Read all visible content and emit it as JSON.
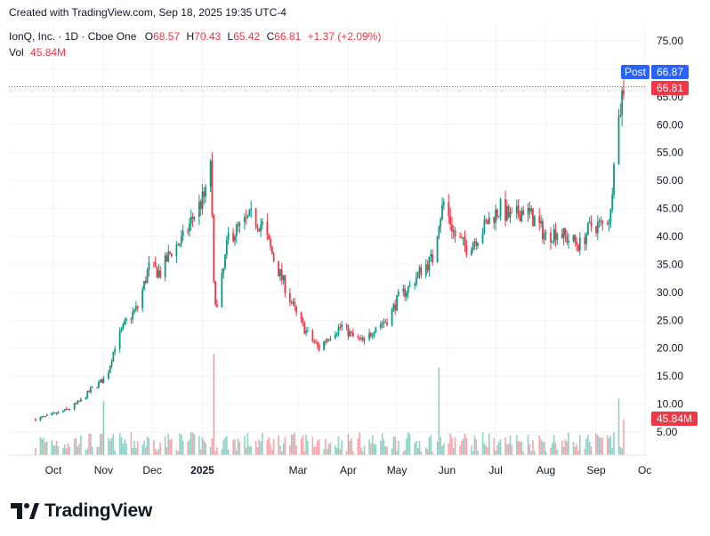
{
  "credit": "Created with TradingView.com, Sep 18, 2025 19:35 UTC-4",
  "brand": "TradingView",
  "legend": {
    "symbol": "IonQ, Inc. · 1D · Cboe One",
    "o_label": "O",
    "o": "68.57",
    "h_label": "H",
    "h": "70.43",
    "l_label": "L",
    "l": "65.42",
    "c_label": "C",
    "c": "66.81",
    "change": "+1.37 (+2.09%)",
    "vol_label": "Vol",
    "vol": "45.84M"
  },
  "badges": {
    "post_label": "Post",
    "post_price": "66.87",
    "last_price": "66.81",
    "volume": "45.84M"
  },
  "colors": {
    "up": "#089981",
    "down": "#f23645",
    "post": "#2962ff",
    "grid": "#f0f3fa"
  },
  "chart_data": {
    "type": "candlestick",
    "y_axis_ticks": [
      "5.00",
      "10.00",
      "15.00",
      "20.00",
      "25.00",
      "30.00",
      "35.00",
      "40.00",
      "45.00",
      "50.00",
      "55.00",
      "60.00",
      "65.00",
      "70.00",
      "75.00"
    ],
    "x_axis_ticks": [
      "Oct",
      "Nov",
      "Dec",
      "2025",
      "Mar",
      "Apr",
      "May",
      "Jun",
      "Jul",
      "Aug",
      "Sep",
      "Oc"
    ],
    "x_axis_dates": [
      "2024-10-01",
      "2024-11-01",
      "2024-12-01",
      "2025-01-01",
      "2025-03-01",
      "2025-04-01",
      "2025-05-01",
      "2025-06-01",
      "2025-07-01",
      "2025-08-01",
      "2025-09-01",
      "2025-10-01"
    ],
    "ylim": [
      0,
      78
    ],
    "closes": [
      [
        "2024-09-20",
        7.3
      ],
      [
        "2024-09-27",
        7.8
      ],
      [
        "2024-10-04",
        8.4
      ],
      [
        "2024-10-11",
        9.2
      ],
      [
        "2024-10-18",
        10.6
      ],
      [
        "2024-10-25",
        12.8
      ],
      [
        "2024-11-01",
        14.4
      ],
      [
        "2024-11-04",
        16.0
      ],
      [
        "2024-11-08",
        20.5
      ],
      [
        "2024-11-15",
        24.8
      ],
      [
        "2024-11-22",
        27.3
      ],
      [
        "2024-11-29",
        34.5
      ],
      [
        "2024-12-06",
        33.5
      ],
      [
        "2024-12-13",
        37.5
      ],
      [
        "2024-12-20",
        39.5
      ],
      [
        "2024-12-27",
        44.0
      ],
      [
        "2025-01-03",
        47.5
      ],
      [
        "2025-01-06",
        54.0
      ],
      [
        "2025-01-08",
        31.0
      ],
      [
        "2025-01-10",
        27.0
      ],
      [
        "2025-01-14",
        34.0
      ],
      [
        "2025-01-17",
        40.0
      ],
      [
        "2025-01-24",
        41.5
      ],
      [
        "2025-01-31",
        43.5
      ],
      [
        "2025-02-07",
        42.0
      ],
      [
        "2025-02-14",
        36.0
      ],
      [
        "2025-02-21",
        31.0
      ],
      [
        "2025-02-28",
        26.0
      ],
      [
        "2025-03-07",
        22.5
      ],
      [
        "2025-03-14",
        20.0
      ],
      [
        "2025-03-21",
        22.5
      ],
      [
        "2025-03-28",
        24.0
      ],
      [
        "2025-04-04",
        22.0
      ],
      [
        "2025-04-11",
        21.0
      ],
      [
        "2025-04-18",
        24.0
      ],
      [
        "2025-04-25",
        25.0
      ],
      [
        "2025-05-02",
        29.0
      ],
      [
        "2025-05-09",
        31.0
      ],
      [
        "2025-05-16",
        34.0
      ],
      [
        "2025-05-23",
        36.0
      ],
      [
        "2025-05-27",
        43.0
      ],
      [
        "2025-05-30",
        46.0
      ],
      [
        "2025-06-06",
        40.0
      ],
      [
        "2025-06-13",
        38.0
      ],
      [
        "2025-06-20",
        40.0
      ],
      [
        "2025-06-27",
        43.0
      ],
      [
        "2025-07-04",
        45.0
      ],
      [
        "2025-07-11",
        43.0
      ],
      [
        "2025-07-18",
        45.0
      ],
      [
        "2025-07-25",
        43.0
      ],
      [
        "2025-08-01",
        40.0
      ],
      [
        "2025-08-08",
        41.0
      ],
      [
        "2025-08-15",
        39.5
      ],
      [
        "2025-08-22",
        38.5
      ],
      [
        "2025-08-29",
        42.0
      ],
      [
        "2025-09-05",
        42.0
      ],
      [
        "2025-09-10",
        44.0
      ],
      [
        "2025-09-12",
        55.0
      ],
      [
        "2025-09-15",
        61.0
      ],
      [
        "2025-09-17",
        65.4
      ],
      [
        "2025-09-18",
        66.81
      ]
    ],
    "volume_peaks": [
      [
        "2024-11-01",
        10.5
      ],
      [
        "2025-01-08",
        19.0
      ],
      [
        "2025-05-27",
        16.5
      ],
      [
        "2025-09-15",
        11.0
      ],
      [
        "2025-09-18",
        7.3
      ]
    ]
  }
}
